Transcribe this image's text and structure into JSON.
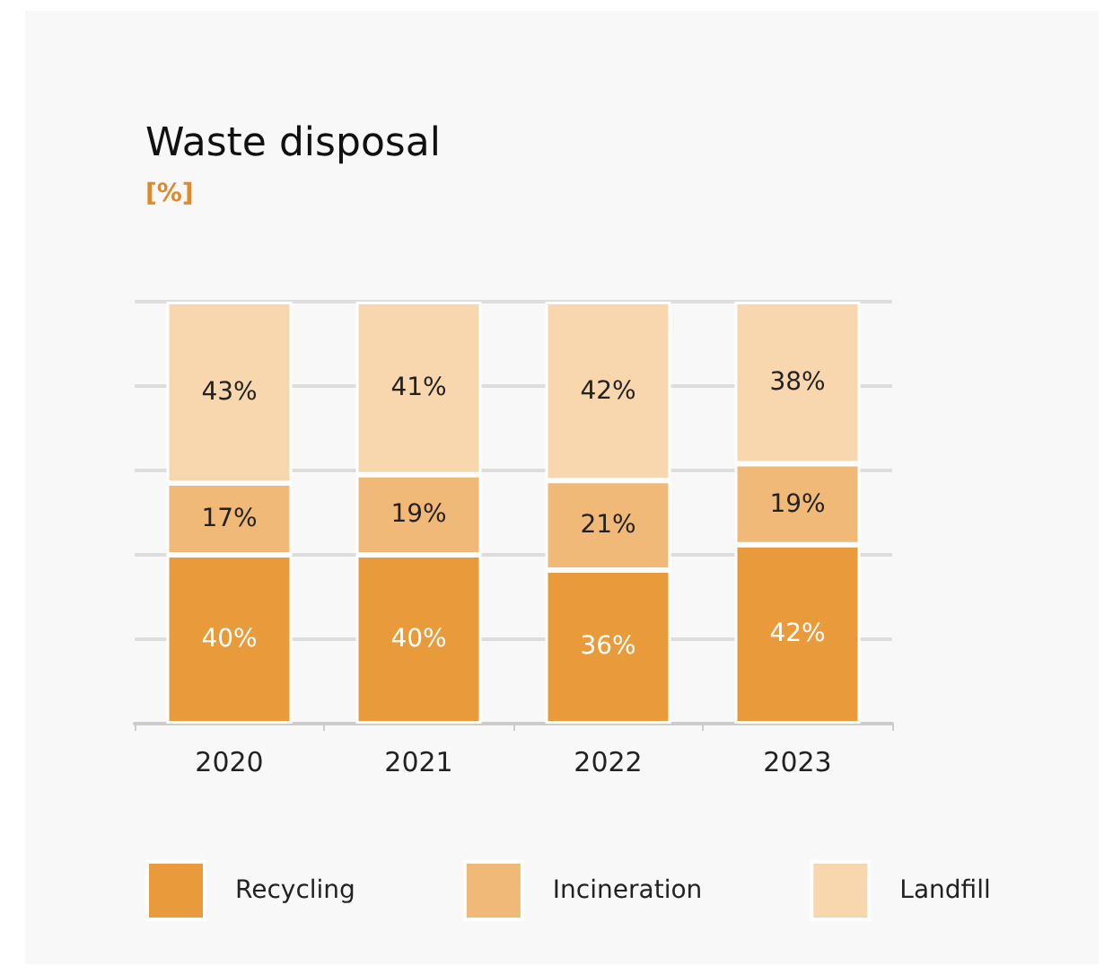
{
  "chart_data": {
    "type": "bar",
    "title": "Waste disposal",
    "subtitle": "[%]",
    "categories": [
      "2020",
      "2021",
      "2022",
      "2023"
    ],
    "stacked": true,
    "series": [
      {
        "name": "Recycling",
        "color": "#e99b3b",
        "values": [
          40,
          40,
          36.4,
          42.4
        ],
        "value_labels": [
          "40%",
          "40%",
          "36%",
          "42%"
        ]
      },
      {
        "name": "Incineration",
        "color": "#f1b977",
        "values": [
          17,
          19,
          21.2,
          19.2
        ],
        "value_labels": [
          "17%",
          "19%",
          "21%",
          "19%"
        ]
      },
      {
        "name": "Landfill",
        "color": "#f8d6ae",
        "values": [
          43,
          41,
          42.4,
          38.4
        ],
        "value_labels": [
          "43%",
          "41%",
          "42%",
          "38%"
        ]
      }
    ],
    "ylim": [
      0,
      100
    ],
    "tick_labels": "x",
    "grid": "y",
    "legend": "bottom"
  }
}
